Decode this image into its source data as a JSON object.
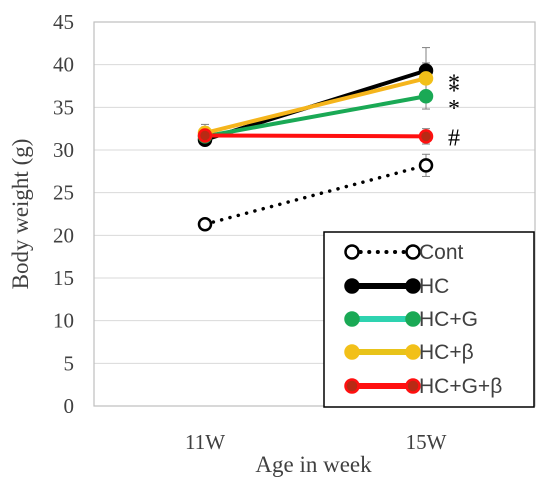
{
  "chart_data": {
    "type": "line",
    "categories": [
      "11W",
      "15W"
    ],
    "xlabel": "Age in week",
    "ylabel": "Body weight (g)",
    "ylim": [
      0,
      45
    ],
    "yticks": [
      0,
      5,
      10,
      15,
      20,
      25,
      30,
      35,
      40,
      45
    ],
    "grid": "horizontal",
    "legend_position": "bottom-right",
    "series": [
      {
        "name": "Cont",
        "values": [
          21.3,
          28.2
        ],
        "error": [
          0.4,
          1.3
        ],
        "color": "#000000",
        "line_style": "dotted",
        "marker": "open-circle",
        "marker_fill": "#ffffff",
        "marker_stroke": "#000000"
      },
      {
        "name": "HC",
        "values": [
          31.2,
          39.3
        ],
        "error": [
          0.6,
          2.7
        ],
        "color": "#000000",
        "line_style": "solid",
        "marker": "filled-circle",
        "marker_fill": "#000000",
        "marker_stroke": "#000000"
      },
      {
        "name": "HC+G",
        "values": [
          31.6,
          36.3
        ],
        "error": [
          0.6,
          1.5
        ],
        "color": "#1aa955",
        "legend_line_color": "#2ed3b0",
        "line_style": "solid",
        "marker": "filled-circle",
        "marker_fill": "#1aa955",
        "marker_stroke": "#1aa955"
      },
      {
        "name": "HC+β",
        "values": [
          32.0,
          38.4
        ],
        "error": [
          1.0,
          1.8
        ],
        "color": "#f5b51c",
        "legend_line_color": "#e8c31a",
        "line_style": "solid",
        "marker": "filled-circle",
        "marker_fill": "#f2c019",
        "marker_stroke": "#f2c019"
      },
      {
        "name": "HC+G+β",
        "values": [
          31.7,
          31.6
        ],
        "error": [
          1.0,
          0.9
        ],
        "color": "#ff1010",
        "line_style": "solid",
        "marker": "filled-circle",
        "marker_fill": "#b82a14",
        "marker_stroke": "#ff1010"
      }
    ],
    "annotations": [
      {
        "text": "*",
        "category": "15W",
        "y": 39.3
      },
      {
        "text": "*",
        "category": "15W",
        "y": 38.4
      },
      {
        "text": "*",
        "category": "15W",
        "y": 36.3
      },
      {
        "text": "#",
        "category": "15W",
        "y": 31.6
      }
    ]
  }
}
